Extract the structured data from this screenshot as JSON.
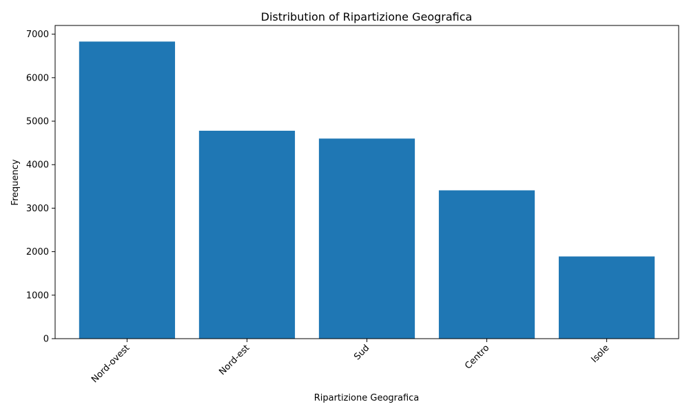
{
  "chart_data": {
    "type": "bar",
    "title": "Distribution of Ripartizione Geografica",
    "xlabel": "Ripartizione Geografica",
    "ylabel": "Frequency",
    "categories": [
      "Nord-ovest",
      "Nord-est",
      "Sud",
      "Centro",
      "Isole"
    ],
    "values": [
      6830,
      4780,
      4600,
      3410,
      1890
    ],
    "ylim": [
      0,
      7200
    ],
    "yticks": [
      0,
      1000,
      2000,
      3000,
      4000,
      5000,
      6000,
      7000
    ],
    "bar_color": "#1f77b4",
    "grid": false,
    "legend": "none"
  }
}
